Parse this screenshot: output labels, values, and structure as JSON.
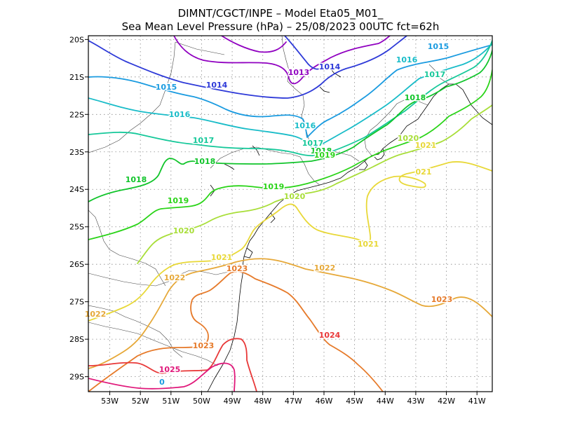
{
  "title": {
    "line1": "DIMNT/CGCT/INPE –   Model Eta05_M01_",
    "line2": "Sea Mean Level Pressure (hPa) – 25/08/2023 00UTC fct=62h"
  },
  "chart_data": {
    "type": "contour map",
    "variable": "Sea Mean Level Pressure (hPa)",
    "lon_range": [
      -53.7,
      -40.5
    ],
    "lat_range": [
      -29.4,
      -19.9
    ],
    "x_ticks": [
      "53W",
      "52W",
      "51W",
      "50W",
      "49W",
      "48W",
      "47W",
      "46W",
      "45W",
      "44W",
      "43W",
      "42W",
      "41W"
    ],
    "y_ticks": [
      "20S",
      "21S",
      "22S",
      "23S",
      "24S",
      "25S",
      "26S",
      "27S",
      "28S",
      "29S"
    ],
    "grid": true,
    "contour_levels": [
      1013,
      1014,
      1015,
      1016,
      1017,
      1018,
      1019,
      1020,
      1021,
      1022,
      1023,
      1024,
      1025
    ],
    "colors": {
      "1013": "#9000c0",
      "1014": "#2e3ad8",
      "1015": "#1a9be0",
      "1016": "#19bcc8",
      "1017": "#16c89a",
      "1018": "#10c42a",
      "1019": "#2ad418",
      "1020": "#a8de38",
      "1021": "#e8d838",
      "1022": "#e6a838",
      "1023": "#e67a2a",
      "1024": "#e83838",
      "1025": "#e0187a"
    }
  },
  "contour_labels": [
    {
      "text": "1013",
      "level": "1013"
    },
    {
      "text": "1014",
      "level": "1014"
    },
    {
      "text": "1014",
      "level": "1014"
    },
    {
      "text": "1015",
      "level": "1015"
    },
    {
      "text": "1015",
      "level": "1015"
    },
    {
      "text": "1016",
      "level": "1016"
    },
    {
      "text": "1016",
      "level": "1016"
    },
    {
      "text": "1016",
      "level": "1016"
    },
    {
      "text": "1017",
      "level": "1017"
    },
    {
      "text": "1017",
      "level": "1017"
    },
    {
      "text": "1017",
      "level": "1017"
    },
    {
      "text": "1018",
      "level": "1018"
    },
    {
      "text": "1018",
      "level": "1018"
    },
    {
      "text": "1018",
      "level": "1018"
    },
    {
      "text": "1018",
      "level": "1018"
    },
    {
      "text": "1019",
      "level": "1019"
    },
    {
      "text": "1019",
      "level": "1019"
    },
    {
      "text": "1019",
      "level": "1019"
    },
    {
      "text": "1020",
      "level": "1020"
    },
    {
      "text": "1020",
      "level": "1020"
    },
    {
      "text": "1020",
      "level": "1020"
    },
    {
      "text": "1021",
      "level": "1021"
    },
    {
      "text": "1021",
      "level": "1021"
    },
    {
      "text": "1021",
      "level": "1021"
    },
    {
      "text": "021",
      "level": "1021"
    },
    {
      "text": "1022",
      "level": "1022"
    },
    {
      "text": "1022",
      "level": "1022"
    },
    {
      "text": "1022",
      "level": "1022"
    },
    {
      "text": "1023",
      "level": "1023"
    },
    {
      "text": "1023",
      "level": "1023"
    },
    {
      "text": "1023",
      "level": "1023"
    },
    {
      "text": "1024",
      "level": "1024"
    },
    {
      "text": "1025",
      "level": "1025"
    },
    {
      "text": "0",
      "level": "1015"
    }
  ]
}
